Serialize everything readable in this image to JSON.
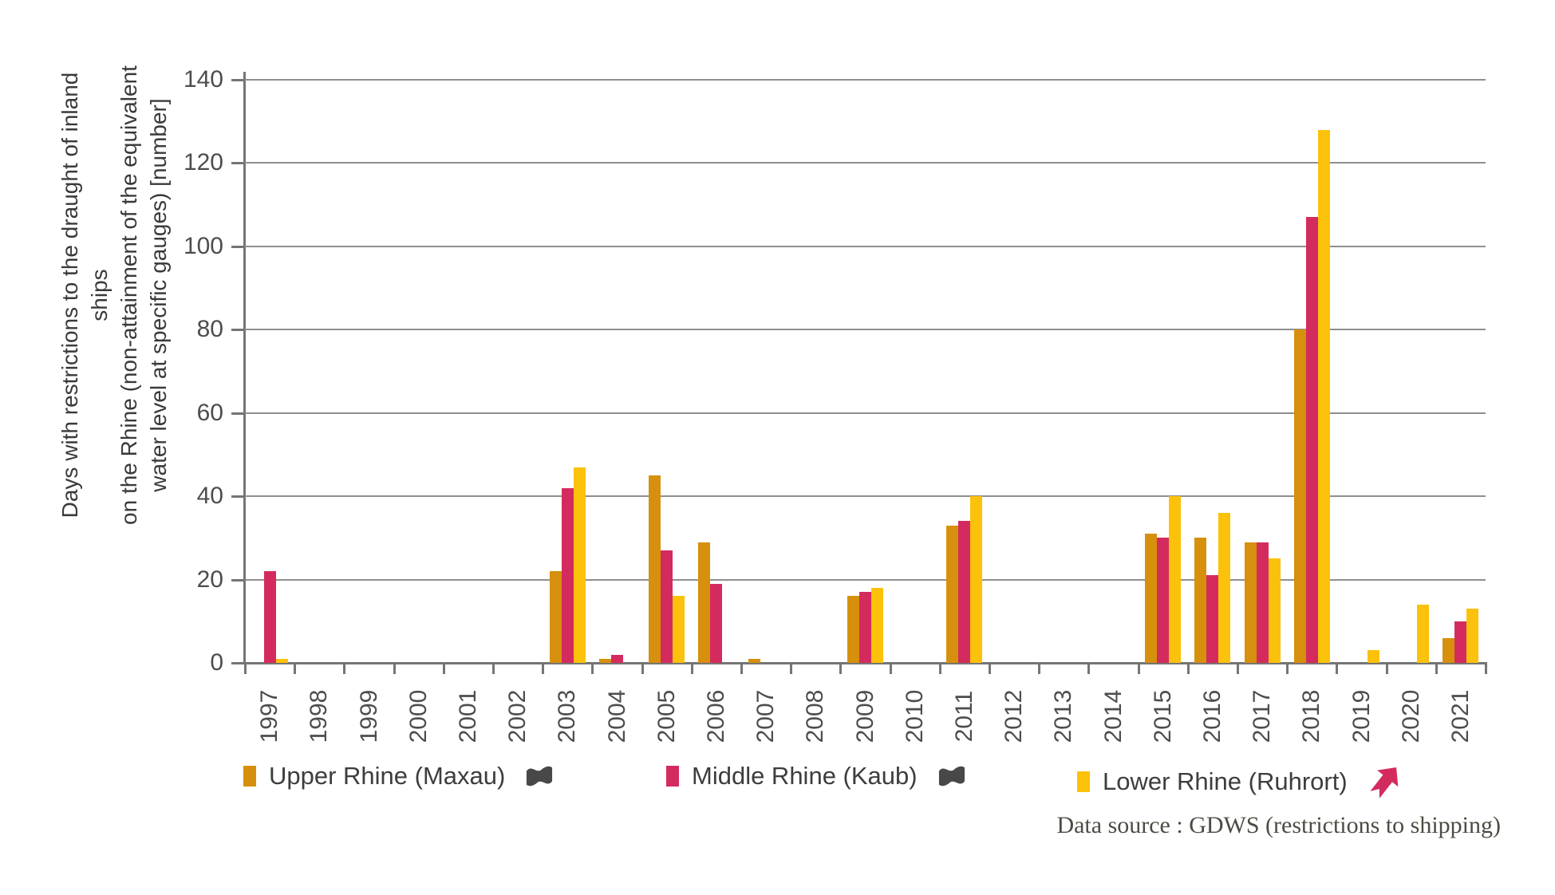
{
  "chart_data": {
    "type": "bar",
    "title": "",
    "ylabel_lines": [
      "Days with restrictions to the draught of inland ships",
      "on the Rhine (non-attainment of the equivalent",
      "water level at specific gauges) [number]"
    ],
    "categories": [
      "1997",
      "1998",
      "1999",
      "2000",
      "2001",
      "2002",
      "2003",
      "2004",
      "2005",
      "2006",
      "2007",
      "2008",
      "2009",
      "2010",
      "2011",
      "2012",
      "2013",
      "2014",
      "2015",
      "2016",
      "2017",
      "2018",
      "2019",
      "2020",
      "2021"
    ],
    "series": [
      {
        "name": "Upper Rhine (Maxau)",
        "color": "#d6900d",
        "trend_icon": "wave-flag",
        "values": [
          0,
          0,
          0,
          0,
          0,
          0,
          22,
          1,
          45,
          29,
          1,
          0,
          16,
          0,
          33,
          0,
          0,
          0,
          31,
          30,
          29,
          80,
          0,
          0,
          6
        ]
      },
      {
        "name": "Middle Rhine (Kaub)",
        "color": "#d42b5e",
        "trend_icon": "wave-flag",
        "values": [
          22,
          0,
          0,
          0,
          0,
          0,
          42,
          2,
          27,
          19,
          0,
          0,
          17,
          0,
          34,
          0,
          0,
          0,
          30,
          21,
          29,
          107,
          0,
          0,
          10
        ]
      },
      {
        "name": "Lower Rhine (Ruhrort)",
        "color": "#fcc10a",
        "trend_icon": "trend-arrow",
        "values": [
          1,
          0,
          0,
          0,
          0,
          0,
          47,
          0,
          16,
          0,
          0,
          0,
          18,
          0,
          40,
          0,
          0,
          0,
          40,
          36,
          25,
          128,
          3,
          14,
          13
        ]
      }
    ],
    "ylim": [
      0,
      140
    ],
    "yticks": [
      0,
      20,
      40,
      60,
      80,
      100,
      120,
      140
    ],
    "grid": "horizontal",
    "legend_position": "bottom"
  },
  "colors": {
    "grid": "#8f8f8f",
    "axis": "#757575",
    "tick_text": "#4d4d4d",
    "legend_icon_gray": "#484848"
  },
  "legend": {
    "items": [
      {
        "label": "Upper Rhine (Maxau)"
      },
      {
        "label": "Middle Rhine (Kaub)"
      },
      {
        "label": "Lower Rhine (Ruhrort)"
      }
    ]
  },
  "footer": {
    "source_label": "Data source : GDWS (restrictions to shipping)"
  }
}
